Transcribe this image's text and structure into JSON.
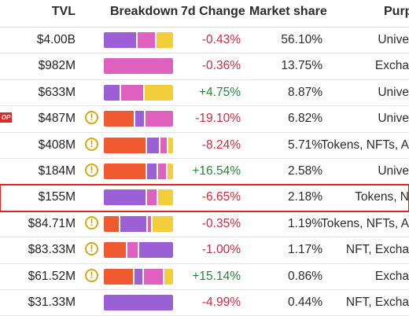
{
  "header": {
    "tvl": "TVL",
    "breakdown": "Breakdown",
    "change": "7d Change",
    "share": "Market share",
    "purpose": "Purp"
  },
  "colors": {
    "purple": "#9b5fd6",
    "pink": "#e060c0",
    "yellow": "#f2ce3a",
    "orange": "#f05a30",
    "negative": "#d7263d",
    "positive": "#218739",
    "highlight": "#e02424"
  },
  "rows": [
    {
      "tvl": "$4.00B",
      "warn": false,
      "op_badge": "",
      "change": "-0.43%",
      "dir": "neg",
      "share": "56.10%",
      "purpose": "Unive",
      "breakdown": [
        {
          "c": "purple",
          "p": 0.49
        },
        {
          "c": "pink",
          "p": 0.27
        },
        {
          "c": "yellow",
          "p": 0.24
        }
      ]
    },
    {
      "tvl": "$982M",
      "warn": false,
      "op_badge": "",
      "change": "-0.36%",
      "dir": "neg",
      "share": "13.75%",
      "purpose": "Excha",
      "breakdown": [
        {
          "c": "pink",
          "p": 1.0
        }
      ]
    },
    {
      "tvl": "$633M",
      "warn": false,
      "op_badge": "",
      "change": "+4.75%",
      "dir": "pos",
      "share": "8.87%",
      "purpose": "Unive",
      "breakdown": [
        {
          "c": "purple",
          "p": 0.25
        },
        {
          "c": "pink",
          "p": 0.34
        },
        {
          "c": "yellow",
          "p": 0.41
        }
      ]
    },
    {
      "tvl": "$487M",
      "warn": true,
      "op_badge": "OP",
      "change": "-19.10%",
      "dir": "neg",
      "share": "6.82%",
      "purpose": "Unive",
      "breakdown": [
        {
          "c": "orange",
          "p": 0.46
        },
        {
          "c": "purple",
          "p": 0.14
        },
        {
          "c": "pink",
          "p": 0.4
        }
      ]
    },
    {
      "tvl": "$408M",
      "warn": true,
      "op_badge": "",
      "change": "-8.24%",
      "dir": "neg",
      "share": "5.71%",
      "purpose": "Tokens, NFTs, A",
      "breakdown": [
        {
          "c": "orange",
          "p": 0.62
        },
        {
          "c": "purple",
          "p": 0.2
        },
        {
          "c": "pink",
          "p": 0.11
        },
        {
          "c": "yellow",
          "p": 0.07
        }
      ]
    },
    {
      "tvl": "$184M",
      "warn": true,
      "op_badge": "",
      "change": "+16.54%",
      "dir": "pos",
      "share": "2.58%",
      "purpose": "Unive",
      "breakdown": [
        {
          "c": "orange",
          "p": 0.62
        },
        {
          "c": "purple",
          "p": 0.16
        },
        {
          "c": "pink",
          "p": 0.14
        },
        {
          "c": "yellow",
          "p": 0.08
        }
      ]
    },
    {
      "tvl": "$155M",
      "warn": false,
      "op_badge": "",
      "change": "-6.65%",
      "dir": "neg",
      "share": "2.18%",
      "purpose": "Tokens, N",
      "highlight": true,
      "breakdown": [
        {
          "c": "purple",
          "p": 0.62
        },
        {
          "c": "pink",
          "p": 0.16
        },
        {
          "c": "yellow",
          "p": 0.22
        }
      ]
    },
    {
      "tvl": "$84.71M",
      "warn": true,
      "op_badge": "",
      "change": "-0.35%",
      "dir": "neg",
      "share": "1.19%",
      "purpose": "Tokens, NFTs, A",
      "breakdown": [
        {
          "c": "orange",
          "p": 0.24
        },
        {
          "c": "purple",
          "p": 0.4
        },
        {
          "c": "pink",
          "p": 0.06
        },
        {
          "c": "yellow",
          "p": 0.3
        }
      ]
    },
    {
      "tvl": "$83.33M",
      "warn": true,
      "op_badge": "",
      "change": "-1.00%",
      "dir": "neg",
      "share": "1.17%",
      "purpose": "NFT, Excha",
      "breakdown": [
        {
          "c": "orange",
          "p": 0.34
        },
        {
          "c": "pink",
          "p": 0.17
        },
        {
          "c": "purple",
          "p": 0.49
        }
      ]
    },
    {
      "tvl": "$61.52M",
      "warn": true,
      "op_badge": "",
      "change": "+15.14%",
      "dir": "pos",
      "share": "0.86%",
      "purpose": "Excha",
      "breakdown": [
        {
          "c": "orange",
          "p": 0.44
        },
        {
          "c": "purple",
          "p": 0.14
        },
        {
          "c": "pink",
          "p": 0.3
        },
        {
          "c": "yellow",
          "p": 0.12
        }
      ]
    },
    {
      "tvl": "$31.33M",
      "warn": false,
      "op_badge": "",
      "change": "-4.99%",
      "dir": "neg",
      "share": "0.44%",
      "purpose": "NFT, Excha",
      "breakdown": [
        {
          "c": "purple",
          "p": 1.0
        }
      ]
    }
  ]
}
